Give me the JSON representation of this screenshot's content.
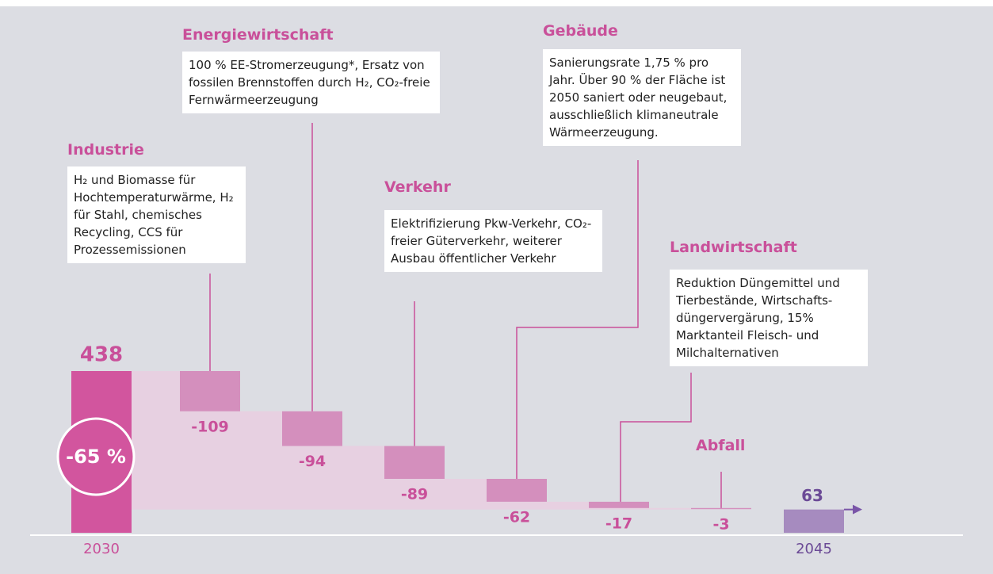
{
  "chart_data": {
    "type": "waterfall",
    "categories": [
      "2030",
      "Industrie",
      "Energiewirtschaft",
      "Verkehr",
      "Gebäude",
      "Landwirtschaft",
      "Abfall",
      "2045"
    ],
    "values": [
      438,
      -109,
      -94,
      -89,
      -62,
      -17,
      -3,
      63
    ],
    "descriptions": [
      null,
      "H₂ und Biomasse für Hochtemperaturwärme, H₂ für Stahl, chemisches Recycling, CCS für Prozessemissionen",
      "100 % EE-Stromerzeugung*, Ersatz von fossilen Brennstoffen durch H₂, CO₂-freie Fernwärmeerzeugung",
      "Elektrifizierung Pkw-Verkehr, CO₂-freier Güterverkehr, weiterer Ausbau öffentlicher Verkehr",
      "Sanierungsrate 1,75 % pro Jahr. Über 90 % der Fläche ist 2050 saniert oder neugebaut, ausschließlich klimaneutrale Wärmeerzeugung.",
      "Reduktion Düngemittel und Tierbestände, Wirtschafts-düngervergärung, 15% Marktanteil Fleisch- und Milchalternativen",
      null,
      null
    ],
    "annotation": "-65 %",
    "colors": {
      "start": "#d2559e",
      "step": "#d48fbd",
      "end": "#a68bbf",
      "area": "#e7d0e1",
      "title": "#c9509a"
    }
  }
}
